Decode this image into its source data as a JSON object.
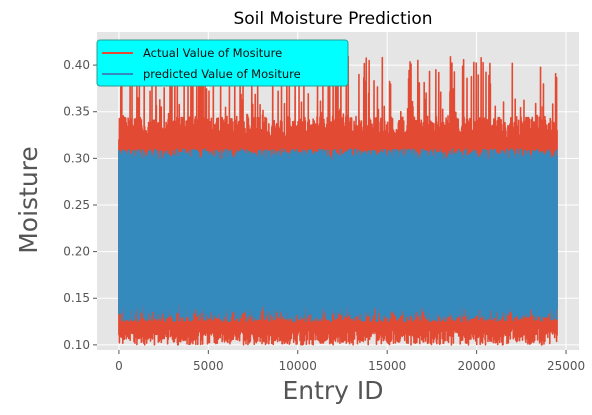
{
  "chart_data": {
    "type": "line",
    "title": "Soil Moisture Prediction",
    "xlabel": "Entry ID",
    "ylabel": "Moisture",
    "xlim": [
      -1225,
      25725
    ],
    "ylim": [
      0.0945,
      0.4355
    ],
    "x_ticks": [
      0,
      5000,
      10000,
      15000,
      20000,
      25000
    ],
    "x_tick_labels": [
      "0",
      "5000",
      "10000",
      "15000",
      "20000",
      "25000"
    ],
    "y_ticks": [
      0.1,
      0.15,
      0.2,
      0.25,
      0.3,
      0.35,
      0.4
    ],
    "y_tick_labels": [
      "0.10",
      "0.15",
      "0.20",
      "0.25",
      "0.30",
      "0.35",
      "0.40"
    ],
    "grid": true,
    "legend_position": "top-left",
    "legend_bg": "#00ffff",
    "plot_bg": "#e5e5e5",
    "x_range": [
      0,
      24500
    ],
    "series": [
      {
        "name": "Actual Value of Mositure",
        "color": "#e24a33",
        "band_min": [
          0.1,
          0.11
        ],
        "band_max": [
          0.32,
          0.41
        ],
        "typical_max": 0.345,
        "typical_min": 0.12
      },
      {
        "name": "predicted Value of Mositure",
        "color": "#348abd",
        "band_min": [
          0.125,
          0.145
        ],
        "band_max": [
          0.295,
          0.31
        ]
      }
    ]
  }
}
